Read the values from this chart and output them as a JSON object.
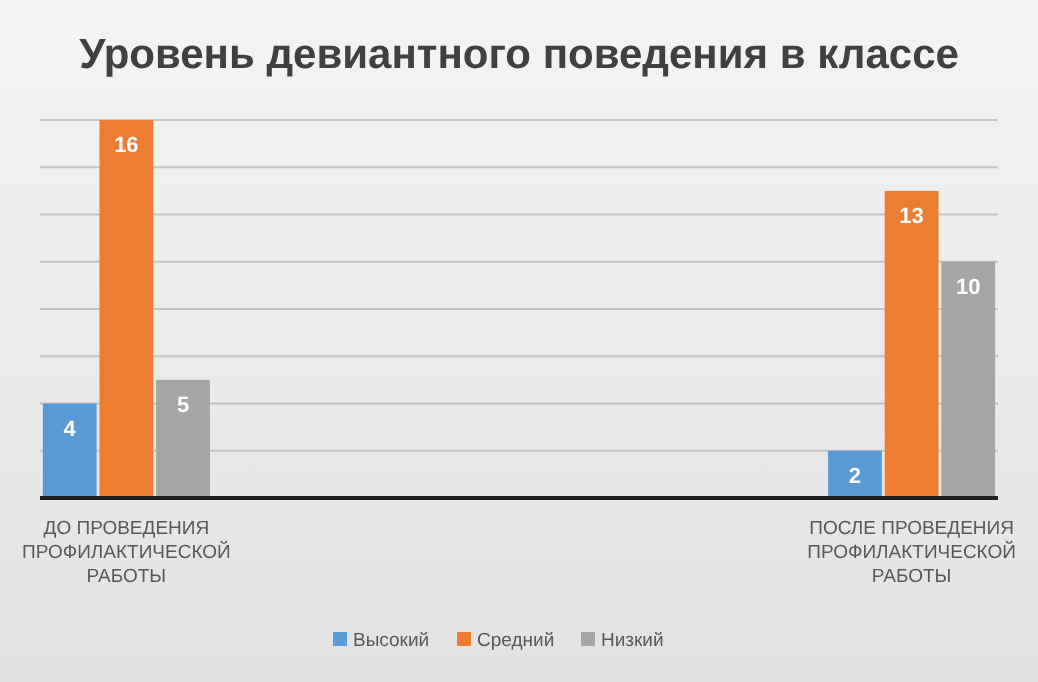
{
  "chart_data": {
    "type": "bar",
    "title": "Уровень девиантного поведения в классе",
    "categories": [
      "ДО ПРОВЕДЕНИЯ ПРОФИЛАКТИЧЕСКОЙ РАБОТЫ",
      "ПОСЛЕ ПРОВЕДЕНИЯ ПРОФИЛАКТИЧЕСКОЙ РАБОТЫ"
    ],
    "series": [
      {
        "name": "Высокий",
        "color": "#5b9bd5",
        "values": [
          4,
          2
        ]
      },
      {
        "name": "Средний",
        "color": "#ed7d31",
        "values": [
          16,
          13
        ]
      },
      {
        "name": "Низкий",
        "color": "#a5a5a5",
        "values": [
          5,
          10
        ]
      }
    ],
    "ylim": [
      0,
      16
    ],
    "yticks": [
      {
        "value": 0,
        "label": null
      },
      {
        "value": 2,
        "label": null
      },
      {
        "value": 4,
        "label": null
      },
      {
        "value": 6,
        "label": null
      },
      {
        "value": 8,
        "label": null
      },
      {
        "value": 10,
        "label": null
      },
      {
        "value": 12,
        "label": null
      },
      {
        "value": 14,
        "label": null
      },
      {
        "value": 16,
        "label": null
      }
    ],
    "tick_labels": "x",
    "grid": "y",
    "data_labels": true,
    "legend": "bottom"
  }
}
